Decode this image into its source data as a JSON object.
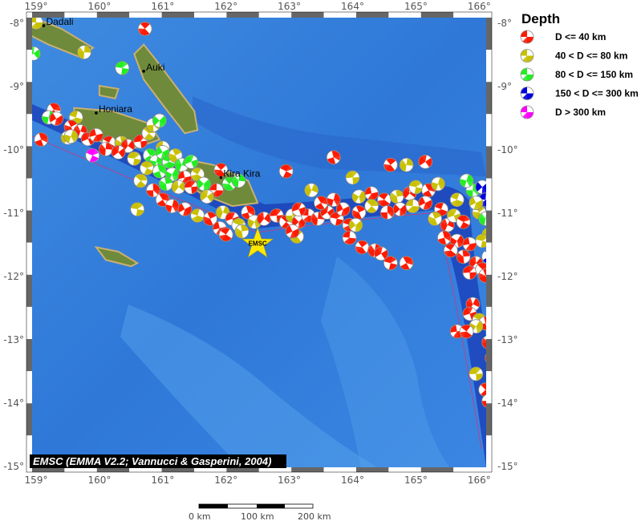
{
  "map": {
    "lon_ticks": [
      "159°",
      "160°",
      "161°",
      "162°",
      "163°",
      "164°",
      "165°",
      "166°"
    ],
    "lat_ticks": [
      "-8°",
      "-9°",
      "-10°",
      "-11°",
      "-12°",
      "-13°",
      "-14°",
      "-15°"
    ],
    "lon_range": [
      159,
      166
    ],
    "lat_range": [
      -8,
      -15
    ],
    "cities": [
      {
        "name": "Dadali",
        "lon": 159.12,
        "lat": -8.05
      },
      {
        "name": "Auki",
        "lon": 160.7,
        "lat": -8.77
      },
      {
        "name": "Honiara",
        "lon": 159.95,
        "lat": -9.43
      },
      {
        "name": "Kira Kira",
        "lon": 161.92,
        "lat": -10.45
      }
    ],
    "epicenter": {
      "label": "EMSC",
      "lon": 162.5,
      "lat": -11.5,
      "color": "#ffe800"
    },
    "credit": "EMSC (EMMA V2.2; Vannucci & Gasperini, 2004)",
    "events": [
      [
        159.0,
        -8.0,
        1
      ],
      [
        160.72,
        -8.1,
        0
      ],
      [
        159.76,
        -8.47,
        1
      ],
      [
        158.96,
        -8.49,
        2
      ],
      [
        160.36,
        -8.72,
        2
      ],
      [
        159.28,
        -9.38,
        0
      ],
      [
        159.2,
        -9.5,
        2
      ],
      [
        159.32,
        -9.52,
        0
      ],
      [
        159.63,
        -9.5,
        1
      ],
      [
        159.55,
        -9.65,
        0
      ],
      [
        159.7,
        -9.72,
        0
      ],
      [
        159.82,
        -9.84,
        0
      ],
      [
        159.89,
        -10.1,
        4
      ],
      [
        159.08,
        -9.85,
        0
      ],
      [
        159.5,
        -9.82,
        1
      ],
      [
        159.95,
        -9.78,
        0
      ],
      [
        160.15,
        -9.9,
        0
      ],
      [
        160.35,
        -9.9,
        1
      ],
      [
        160.45,
        -9.95,
        0
      ],
      [
        160.65,
        -9.88,
        0
      ],
      [
        160.78,
        -9.75,
        1
      ],
      [
        160.85,
        -9.62,
        1
      ],
      [
        160.95,
        -9.55,
        2
      ],
      [
        161.0,
        -9.98,
        1
      ],
      [
        161.92,
        -10.33,
        0
      ],
      [
        160.1,
        -10.0,
        0
      ],
      [
        160.3,
        -10.05,
        0
      ],
      [
        160.55,
        -10.15,
        1
      ],
      [
        160.8,
        -10.1,
        2
      ],
      [
        160.9,
        -10.2,
        2
      ],
      [
        161.0,
        -10.05,
        2
      ],
      [
        161.1,
        -10.2,
        2
      ],
      [
        161.2,
        -10.1,
        1
      ],
      [
        161.3,
        -10.25,
        2
      ],
      [
        161.45,
        -10.2,
        2
      ],
      [
        160.75,
        -10.3,
        1
      ],
      [
        160.95,
        -10.35,
        2
      ],
      [
        161.15,
        -10.4,
        2
      ],
      [
        161.35,
        -10.45,
        0
      ],
      [
        161.55,
        -10.4,
        1
      ],
      [
        161.05,
        -10.55,
        2
      ],
      [
        161.25,
        -10.6,
        1
      ],
      [
        161.45,
        -10.6,
        0
      ],
      [
        160.65,
        -10.5,
        1
      ],
      [
        160.85,
        -10.65,
        0
      ],
      [
        161.65,
        -10.55,
        2
      ],
      [
        161.85,
        -10.65,
        0
      ],
      [
        162.05,
        -10.55,
        2
      ],
      [
        162.2,
        -10.5,
        2
      ],
      [
        161.7,
        -10.75,
        1
      ],
      [
        160.6,
        -10.95,
        1
      ],
      [
        161.0,
        -10.8,
        0
      ],
      [
        161.15,
        -10.9,
        0
      ],
      [
        161.35,
        -10.95,
        0
      ],
      [
        161.55,
        -11.05,
        1
      ],
      [
        161.75,
        -11.1,
        0
      ],
      [
        161.95,
        -11.0,
        1
      ],
      [
        162.1,
        -11.1,
        0
      ],
      [
        162.2,
        -11.2,
        1
      ],
      [
        162.35,
        -11.0,
        0
      ],
      [
        162.45,
        -11.15,
        1
      ],
      [
        161.9,
        -11.25,
        0
      ],
      [
        162.0,
        -11.35,
        0
      ],
      [
        162.25,
        -11.3,
        1
      ],
      [
        162.6,
        -11.1,
        0
      ],
      [
        162.8,
        -11.05,
        0
      ],
      [
        162.95,
        -11.15,
        0
      ],
      [
        163.05,
        -11.05,
        1
      ],
      [
        163.15,
        -11.15,
        0
      ],
      [
        163.3,
        -11.05,
        0
      ],
      [
        163.12,
        -11.38,
        1
      ],
      [
        163.45,
        -11.1,
        0
      ],
      [
        163.6,
        -11.0,
        0
      ],
      [
        163.75,
        -11.1,
        0
      ],
      [
        163.5,
        -10.85,
        0
      ],
      [
        163.7,
        -10.8,
        0
      ],
      [
        163.85,
        -10.95,
        0
      ],
      [
        163.95,
        -11.2,
        0
      ],
      [
        164.1,
        -11.0,
        0
      ],
      [
        163.35,
        -10.65,
        1
      ],
      [
        163.15,
        -10.95,
        0
      ],
      [
        162.95,
        -10.35,
        0
      ],
      [
        163.7,
        -10.13,
        0
      ],
      [
        164.1,
        -10.75,
        1
      ],
      [
        164.3,
        -10.7,
        0
      ],
      [
        164.5,
        -10.8,
        0
      ],
      [
        164.7,
        -10.75,
        1
      ],
      [
        164.9,
        -10.7,
        0
      ],
      [
        164.0,
        -10.45,
        1
      ],
      [
        164.3,
        -10.9,
        1
      ],
      [
        164.55,
        -11.0,
        0
      ],
      [
        164.75,
        -10.95,
        0
      ],
      [
        164.95,
        -10.9,
        1
      ],
      [
        164.6,
        -10.25,
        0
      ],
      [
        164.85,
        -10.25,
        1
      ],
      [
        165.15,
        -10.2,
        0
      ],
      [
        165.0,
        -10.6,
        1
      ],
      [
        165.2,
        -10.65,
        0
      ],
      [
        165.35,
        -10.55,
        1
      ],
      [
        165.15,
        -10.85,
        0
      ],
      [
        165.4,
        -10.95,
        0
      ],
      [
        165.3,
        -11.1,
        1
      ],
      [
        165.5,
        -11.2,
        0
      ],
      [
        165.6,
        -11.05,
        1
      ],
      [
        165.75,
        -11.15,
        0
      ],
      [
        165.45,
        -11.4,
        0
      ],
      [
        165.65,
        -11.45,
        0
      ],
      [
        165.85,
        -11.5,
        0
      ],
      [
        165.55,
        -11.6,
        0
      ],
      [
        165.75,
        -11.7,
        0
      ],
      [
        165.95,
        -11.8,
        0
      ],
      [
        165.85,
        -11.95,
        0
      ],
      [
        166.05,
        -11.9,
        0
      ],
      [
        165.9,
        -10.65,
        2
      ],
      [
        166.05,
        -10.6,
        3
      ],
      [
        166.1,
        -10.8,
        3
      ],
      [
        166.0,
        -11.0,
        1
      ],
      [
        166.1,
        -11.1,
        2
      ],
      [
        166.15,
        -11.35,
        1
      ],
      [
        166.05,
        -11.45,
        1
      ],
      [
        166.15,
        -11.7,
        3
      ],
      [
        165.8,
        -10.5,
        2
      ],
      [
        165.95,
        -10.85,
        1
      ],
      [
        165.65,
        -10.8,
        1
      ],
      [
        166.1,
        -12.0,
        0
      ],
      [
        165.9,
        -12.45,
        0
      ],
      [
        165.85,
        -12.6,
        0
      ],
      [
        166.0,
        -12.7,
        1
      ],
      [
        166.1,
        -12.75,
        0
      ],
      [
        165.95,
        -12.8,
        1
      ],
      [
        165.65,
        -12.88,
        0
      ],
      [
        165.8,
        -12.88,
        0
      ],
      [
        166.15,
        -13.05,
        0
      ],
      [
        166.2,
        -13.3,
        0
      ],
      [
        165.95,
        -13.55,
        1
      ],
      [
        166.1,
        -13.8,
        0
      ],
      [
        166.15,
        -13.98,
        0
      ],
      [
        164.05,
        -11.2,
        1
      ],
      [
        163.95,
        -11.4,
        0
      ],
      [
        164.15,
        -11.55,
        0
      ],
      [
        164.35,
        -11.6,
        0
      ],
      [
        164.45,
        -11.65,
        0
      ],
      [
        164.6,
        -11.8,
        0
      ],
      [
        164.85,
        -11.8,
        0
      ],
      [
        159.55,
        -9.8,
        1
      ],
      [
        163.05,
        -11.3,
        0
      ]
    ]
  },
  "legend": {
    "title": "Depth",
    "items": [
      {
        "label": "D <= 40 km",
        "color": "#ff1a00"
      },
      {
        "label": "40 < D <= 80 km",
        "color": "#c8c000"
      },
      {
        "label": "80 < D <= 150 km",
        "color": "#22ee22"
      },
      {
        "label": "150 < D <= 300 km",
        "color": "#0000dd"
      },
      {
        "label": "D > 300 km",
        "color": "#ff00ff"
      }
    ]
  },
  "scale_bar": {
    "labels": [
      "0 km",
      "100 km",
      "200 km"
    ]
  }
}
